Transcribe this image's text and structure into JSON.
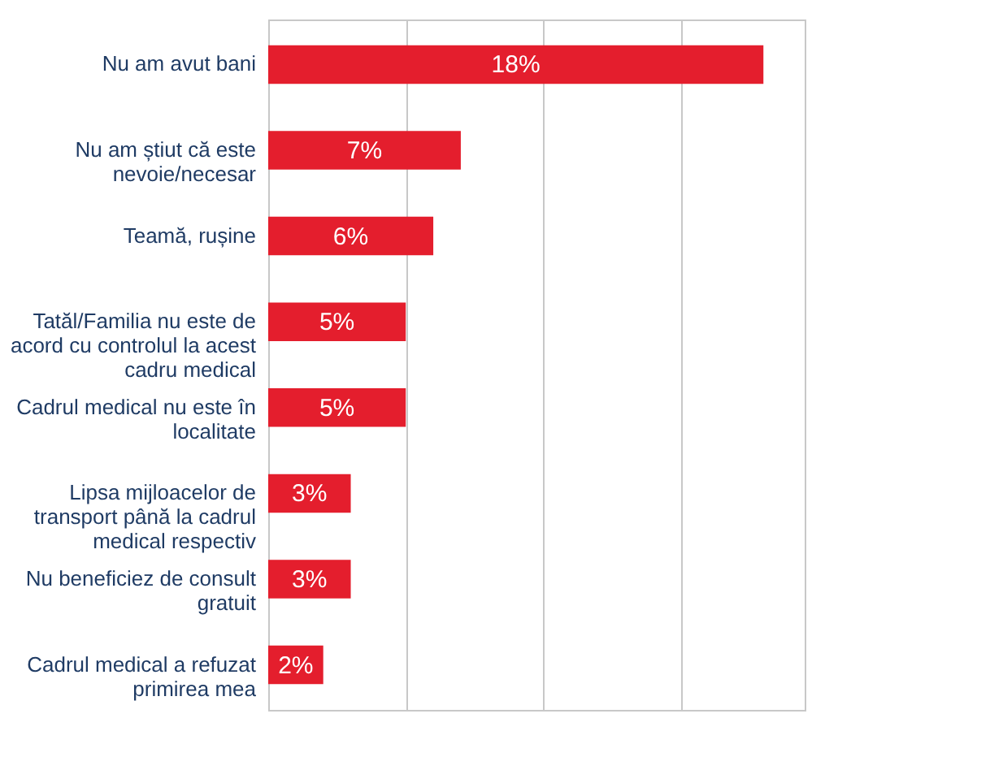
{
  "chart_data": {
    "type": "bar",
    "orientation": "horizontal",
    "categories": [
      "Nu am avut bani",
      "Nu am știut că este nevoie/necesar",
      "Teamă, rușine",
      "Tatăl/Familia nu este de acord cu controlul la acest cadru medical",
      "Cadrul medical nu este în localitate",
      "Lipsa mijloacelor de transport până la cadrul medical respectiv",
      "Nu beneficiez de consult gratuit",
      "Cadrul medical a refuzat primirea mea"
    ],
    "values": [
      18,
      7,
      6,
      5,
      5,
      3,
      3,
      2
    ],
    "value_labels": [
      "18%",
      "7%",
      "6%",
      "5%",
      "5%",
      "3%",
      "3%",
      "2%"
    ],
    "color": "#e41e2d",
    "xlim": [
      0,
      19.5
    ],
    "xticks": [
      {
        "value": 0,
        "label": null
      },
      {
        "value": 5,
        "label": null
      },
      {
        "value": 10,
        "label": null
      },
      {
        "value": 15,
        "label": null
      }
    ],
    "grid": "x",
    "tick_labels": "y"
  }
}
